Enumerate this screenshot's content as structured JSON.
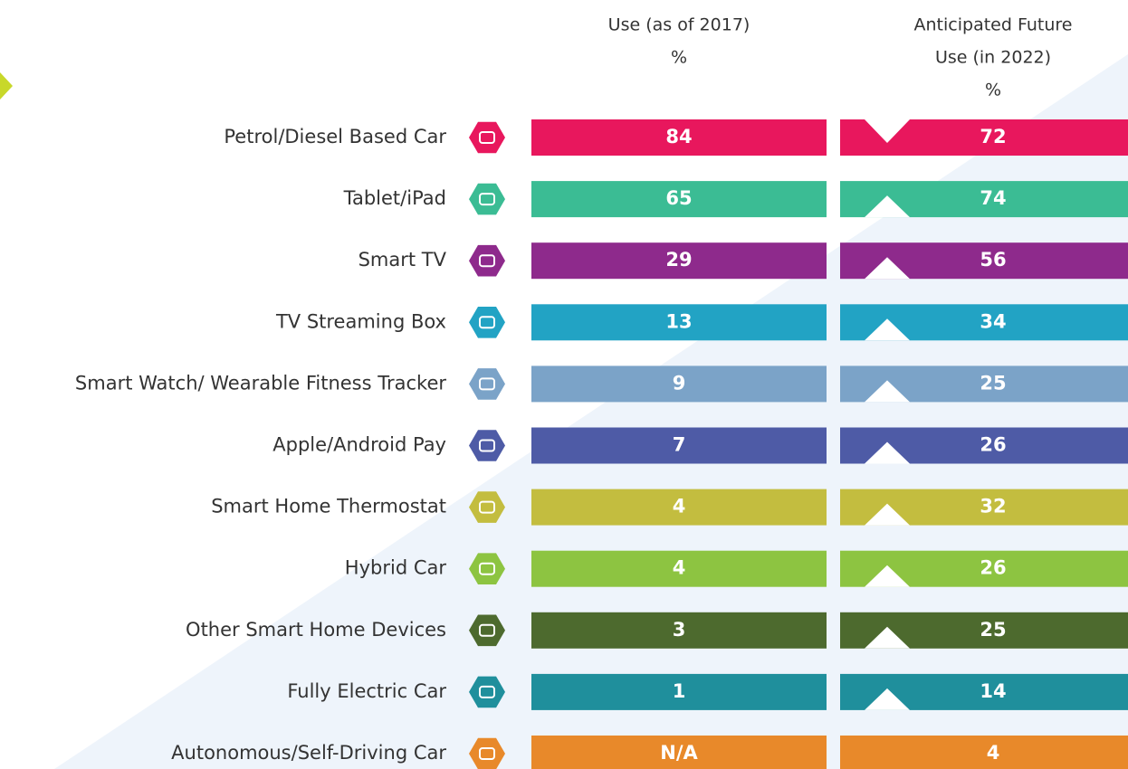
{
  "header": {
    "current": [
      "Use (as of 2017)",
      "%"
    ],
    "future": [
      "Anticipated Future",
      "Use (in 2022)",
      "%"
    ]
  },
  "table": {
    "rows": [
      {
        "label": "Petrol/Diesel Based Car",
        "color": "#e8175d",
        "current": 84,
        "future": 72,
        "trend": "down"
      },
      {
        "label": "Tablet/iPad",
        "color": "#3bbc94",
        "current": 65,
        "future": 74,
        "trend": "up"
      },
      {
        "label": "Smart TV",
        "color": "#8e2a8c",
        "current": 29,
        "future": 56,
        "trend": "up"
      },
      {
        "label": "TV Streaming Box",
        "color": "#22a3c4",
        "current": 13,
        "future": 34,
        "trend": "up"
      },
      {
        "label": "Smart Watch/ Wearable Fitness Tracker",
        "color": "#7ba3c8",
        "current": 9,
        "future": 25,
        "trend": "up"
      },
      {
        "label": "Apple/Android Pay",
        "color": "#4e5ba6",
        "current": 7,
        "future": 26,
        "trend": "up"
      },
      {
        "label": "Smart Home Thermostat",
        "color": "#c3bd3f",
        "current": 4,
        "future": 32,
        "trend": "up"
      },
      {
        "label": "Hybrid Car",
        "color": "#8dc441",
        "current": 4,
        "future": 26,
        "trend": "up"
      },
      {
        "label": "Other Smart Home Devices",
        "color": "#4d6a2e",
        "current": 3,
        "future": 25,
        "trend": "up"
      },
      {
        "label": "Fully Electric Car",
        "color": "#1f8f9c",
        "current": 1,
        "future": 14,
        "trend": "up"
      },
      {
        "label": "Autonomous/Self-Driving Car",
        "color": "#e8892a",
        "current": "N/A",
        "future": 4,
        "trend": null
      }
    ]
  }
}
